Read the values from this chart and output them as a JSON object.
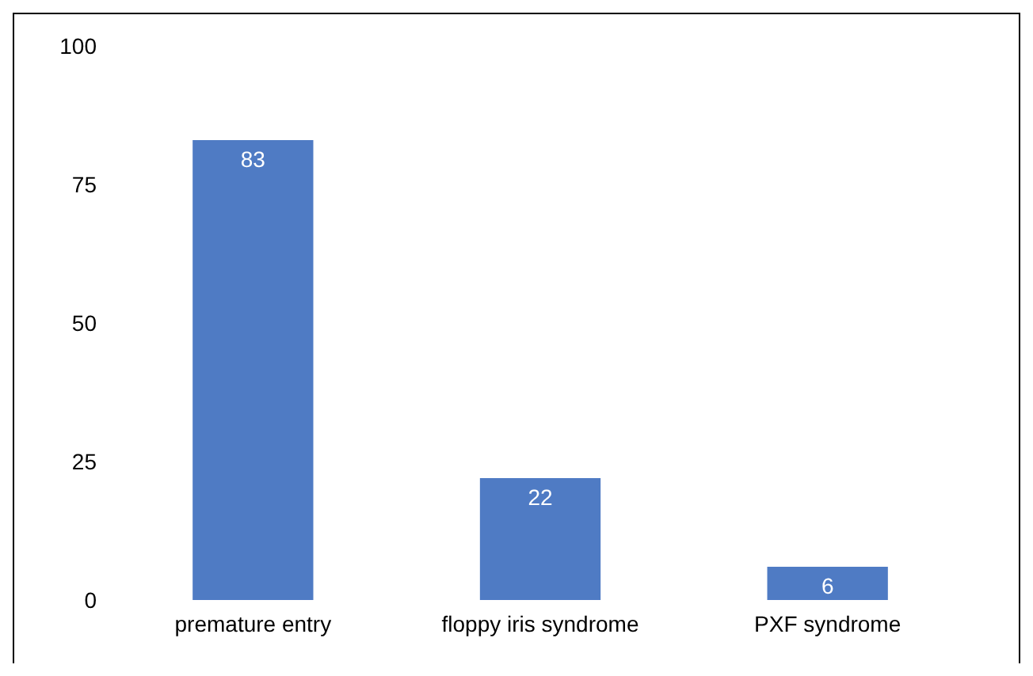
{
  "chart_data": {
    "type": "bar",
    "categories": [
      "premature entry",
      "floppy iris syndrome",
      "PXF syndrome"
    ],
    "values": [
      83,
      22,
      6
    ],
    "color": "#4f7bc4",
    "ylim": [
      0,
      100
    ],
    "yticks": [
      0,
      25,
      50,
      75,
      100
    ],
    "data_labels": true,
    "grid": false
  }
}
